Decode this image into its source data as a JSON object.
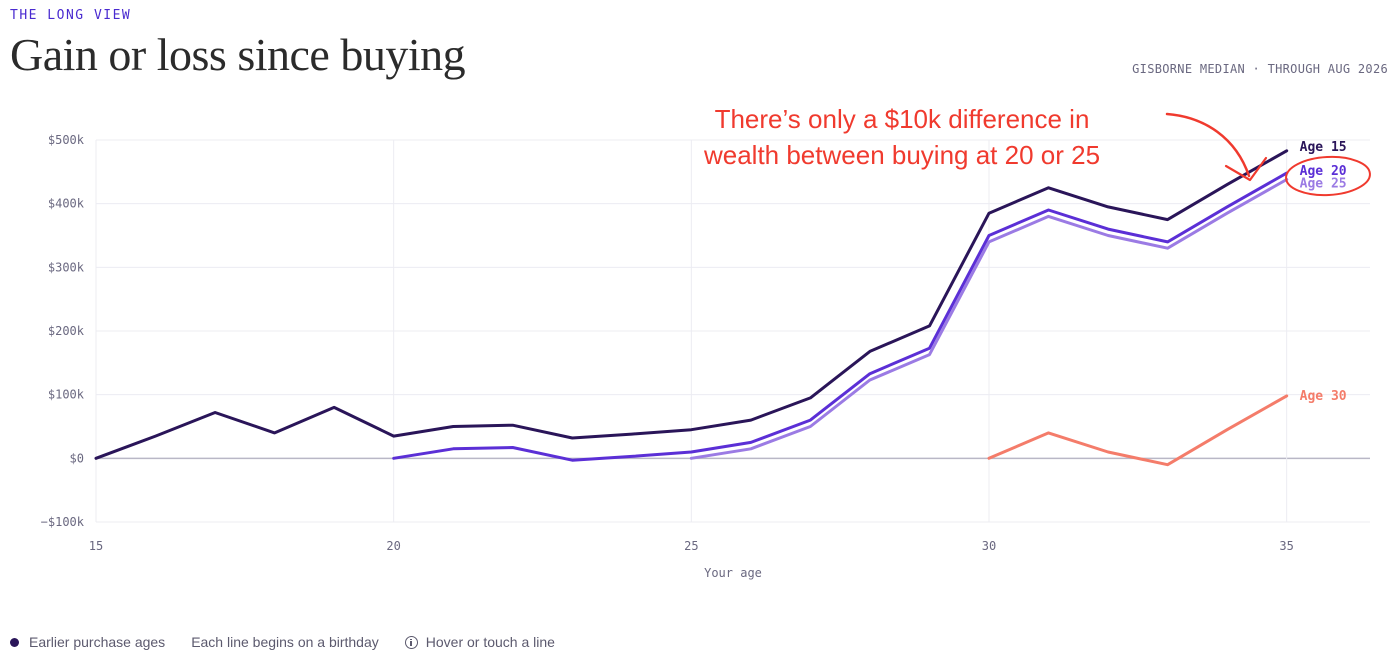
{
  "header": {
    "kicker": "THE LONG VIEW",
    "title": "Gain or loss since buying",
    "source": "GISBORNE MEDIAN · THROUGH AUG 2026"
  },
  "chart_data": {
    "type": "line",
    "title": "Gain or loss since buying",
    "xlabel": "Your age",
    "ylabel": "",
    "xlim": [
      15,
      36.4
    ],
    "ylim": [
      -100000,
      500000
    ],
    "x_ticks": [
      {
        "value": 15,
        "label": "15"
      },
      {
        "value": 20,
        "label": "20"
      },
      {
        "value": 25,
        "label": "25"
      },
      {
        "value": 30,
        "label": "30"
      },
      {
        "value": 35,
        "label": "35"
      }
    ],
    "y_ticks": [
      {
        "value": 500000,
        "label": "$500k"
      },
      {
        "value": 400000,
        "label": "$400k"
      },
      {
        "value": 300000,
        "label": "$300k"
      },
      {
        "value": 200000,
        "label": "$200k"
      },
      {
        "value": 100000,
        "label": "$100k"
      },
      {
        "value": 0,
        "label": "$0"
      },
      {
        "value": -100000,
        "label": "−$100k"
      }
    ],
    "grid": true,
    "series": [
      {
        "name": "Age 15",
        "color": "#2a1559",
        "points": [
          [
            15,
            0
          ],
          [
            16,
            35000
          ],
          [
            17,
            72000
          ],
          [
            18,
            40000
          ],
          [
            19,
            80000
          ],
          [
            20,
            35000
          ],
          [
            21,
            50000
          ],
          [
            22,
            52000
          ],
          [
            23,
            32000
          ],
          [
            24,
            38000
          ],
          [
            25,
            45000
          ],
          [
            26,
            60000
          ],
          [
            27,
            95000
          ],
          [
            28,
            168000
          ],
          [
            29,
            208000
          ],
          [
            30,
            385000
          ],
          [
            31,
            425000
          ],
          [
            32,
            395000
          ],
          [
            33,
            375000
          ],
          [
            34,
            430000
          ],
          [
            35,
            483000
          ]
        ]
      },
      {
        "name": "Age 20",
        "color": "#5b2fd6",
        "points": [
          [
            20,
            0
          ],
          [
            21,
            15000
          ],
          [
            22,
            17000
          ],
          [
            23,
            -3000
          ],
          [
            24,
            3000
          ],
          [
            25,
            10000
          ],
          [
            26,
            25000
          ],
          [
            27,
            60000
          ],
          [
            28,
            133000
          ],
          [
            29,
            173000
          ],
          [
            30,
            350000
          ],
          [
            31,
            390000
          ],
          [
            32,
            360000
          ],
          [
            33,
            340000
          ],
          [
            34,
            395000
          ],
          [
            35,
            448000
          ]
        ]
      },
      {
        "name": "Age 25",
        "color": "#9b7be4",
        "points": [
          [
            25,
            0
          ],
          [
            26,
            15000
          ],
          [
            27,
            50000
          ],
          [
            28,
            123000
          ],
          [
            29,
            163000
          ],
          [
            30,
            340000
          ],
          [
            31,
            380000
          ],
          [
            32,
            350000
          ],
          [
            33,
            330000
          ],
          [
            34,
            385000
          ],
          [
            35,
            438000
          ]
        ]
      },
      {
        "name": "Age 30",
        "color": "#f47c6a",
        "points": [
          [
            30,
            0
          ],
          [
            31,
            40000
          ],
          [
            32,
            10000
          ],
          [
            33,
            -10000
          ],
          [
            34,
            45000
          ],
          [
            35,
            98000
          ]
        ]
      }
    ],
    "annotation": {
      "lines": [
        "There’s only a $10k difference in",
        "wealth between buying at 20 or 25"
      ],
      "color": "#f03a2e"
    }
  },
  "footer": {
    "legend_label": "Earlier purchase ages",
    "note": "Each line begins on a birthday",
    "hint": "Hover or touch a line"
  }
}
